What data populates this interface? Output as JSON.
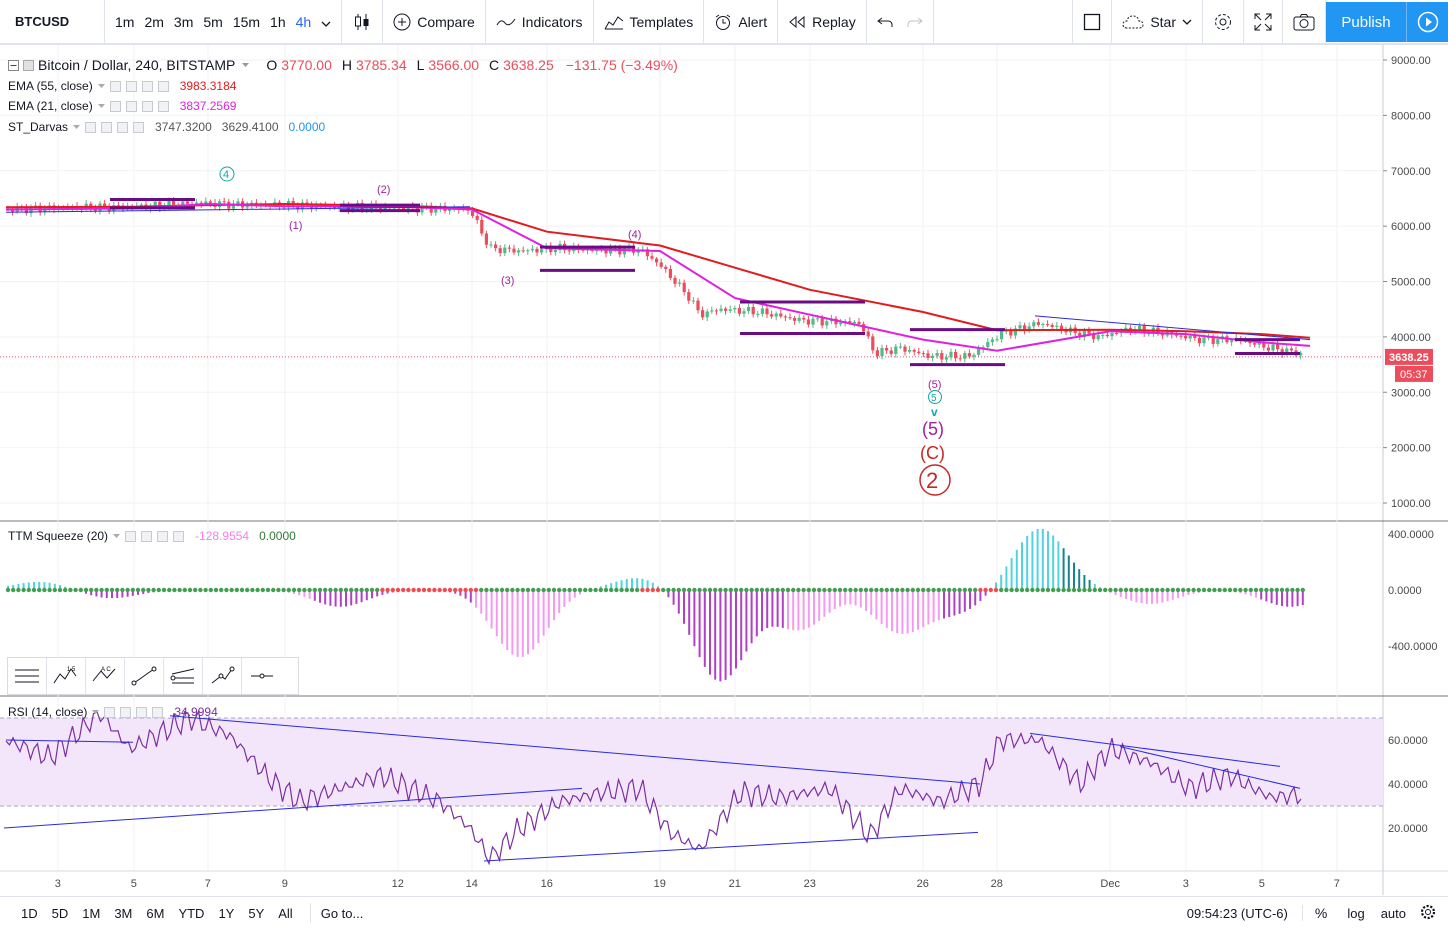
{
  "toolbar": {
    "symbol": "BTCUSD",
    "intervals": [
      "1m",
      "2m",
      "3m",
      "5m",
      "15m",
      "1h",
      "4h"
    ],
    "active_interval": "4h",
    "compare_label": "Compare",
    "indicators_label": "Indicators",
    "templates_label": "Templates",
    "alert_label": "Alert",
    "replay_label": "Replay",
    "star_label": "Star",
    "publish_label": "Publish"
  },
  "legend": {
    "title": "Bitcoin / Dollar, 240, BITSTAMP",
    "o_label": "O",
    "o": "3770.00",
    "h_label": "H",
    "h": "3785.34",
    "l_label": "L",
    "l": "3566.00",
    "c_label": "C",
    "c": "3638.25",
    "change": "−131.75 (−3.49%)",
    "ema55_label": "EMA (55, close)",
    "ema55_value": "3983.3184",
    "ema21_label": "EMA (21, close)",
    "ema21_value": "3837.2569",
    "darvas_label": "ST_Darvas",
    "darvas_v1": "3747.3200",
    "darvas_v2": "3629.4100",
    "darvas_v3": "0.0000",
    "ttm_label": "TTM Squeeze (20)",
    "ttm_v1": "-128.9554",
    "ttm_v2": "0.0000",
    "rsi_label": "RSI (14, close)",
    "rsi_value": "34.9994"
  },
  "colors": {
    "up": "#53b987",
    "down": "#eb4d5c",
    "ema55": "#e01c1c",
    "ema21": "#e020e0",
    "darvas": "#6a0d83",
    "accent": "#2196f3",
    "trend": "#2a2adf",
    "rsi": "#7b2fa0"
  },
  "price_axis": [
    "9000.00",
    "8000.00",
    "7000.00",
    "6000.00",
    "5000.00",
    "4000.00",
    "3000.00",
    "2000.00",
    "1000.00"
  ],
  "price_label": "3638.25",
  "countdown_label": "05:37",
  "ttm_axis": [
    "400.0000",
    "0.0000",
    "-400.0000"
  ],
  "rsi_axis": [
    "60.0000",
    "40.0000",
    "20.0000"
  ],
  "time_axis": [
    "3",
    "5",
    "7",
    "9",
    "12",
    "14",
    "16",
    "19",
    "21",
    "23",
    "26",
    "28",
    "Dec",
    "3",
    "5",
    "7"
  ],
  "wave_labels": {
    "w4_circle": "4",
    "w1": "(1)",
    "w2": "(2)",
    "w3": "(3)",
    "w4": "(4)",
    "w5a": "(5)",
    "w5b": "5",
    "w5c": "v",
    "w5d": "(5)",
    "wC": "(C)",
    "w2big": "2"
  },
  "bottom": {
    "ranges": [
      "1D",
      "5D",
      "1M",
      "3M",
      "6M",
      "YTD",
      "1Y",
      "5Y",
      "All"
    ],
    "goto_label": "Go to...",
    "clock": "09:54:23 (UTC-6)",
    "pct": "%",
    "log": "log",
    "auto": "auto"
  },
  "chart_data": {
    "type": "line",
    "title": "Bitcoin / Dollar, 240, BITSTAMP",
    "xlabel": "",
    "ylabel": "",
    "ylim": [
      700,
      9300
    ],
    "x": [
      "3",
      "5",
      "7",
      "9",
      "12",
      "14",
      "16",
      "19",
      "21",
      "23",
      "26",
      "28",
      "Dec",
      "3",
      "5",
      "7"
    ],
    "series": [
      {
        "name": "EMA (55, close)",
        "values": [
          6340,
          6350,
          6380,
          6400,
          6370,
          6320,
          5900,
          5650,
          5250,
          4850,
          4450,
          4120,
          4130,
          4100,
          4050,
          3983
        ]
      },
      {
        "name": "EMA (21, close)",
        "values": [
          6300,
          6320,
          6400,
          6360,
          6350,
          6300,
          5600,
          5550,
          4700,
          4400,
          3950,
          3750,
          4100,
          4050,
          3900,
          3837
        ]
      }
    ]
  }
}
